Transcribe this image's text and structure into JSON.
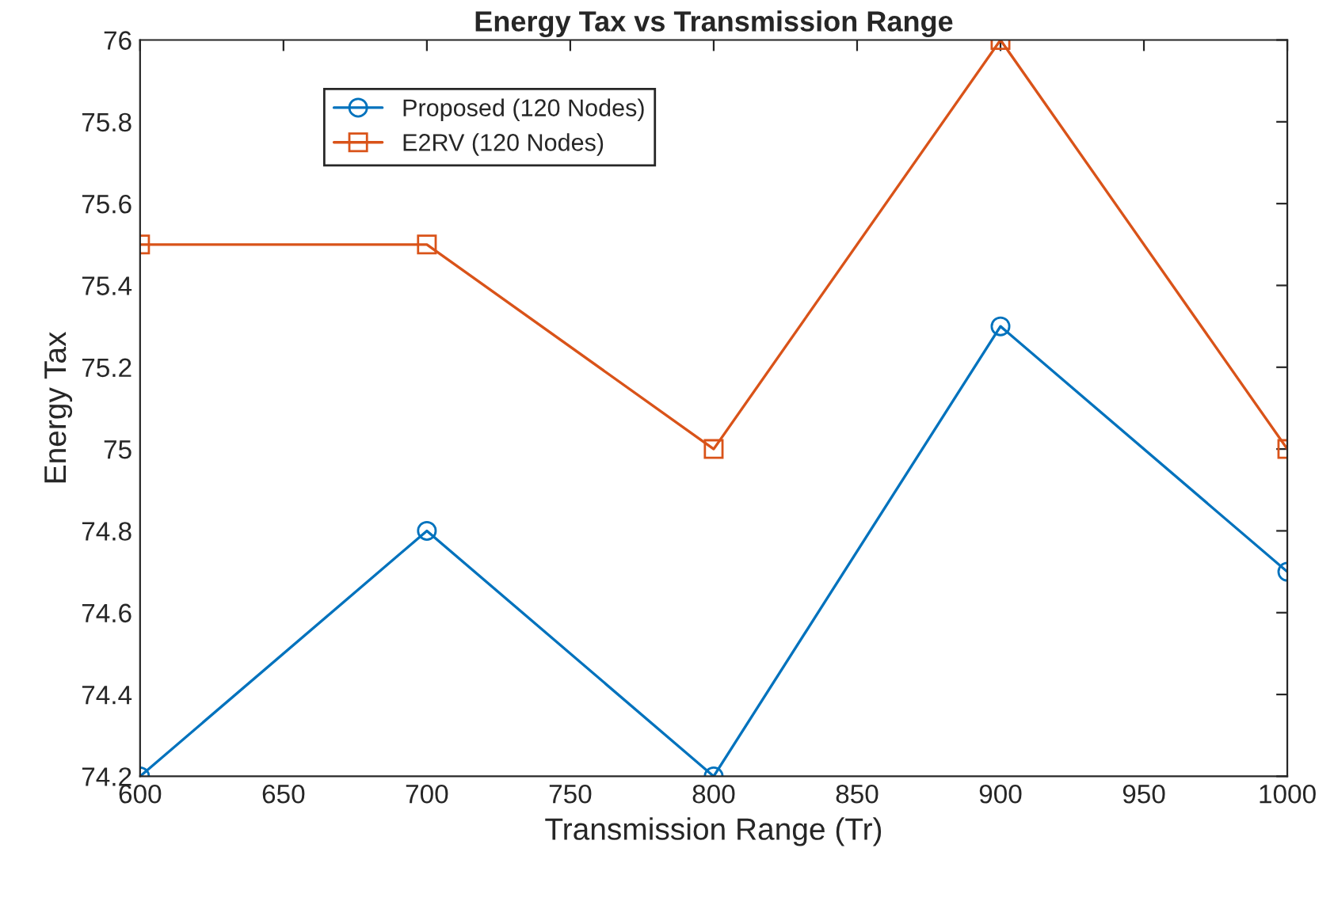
{
  "chart_data": {
    "type": "line",
    "title": "Energy Tax vs Transmission Range",
    "xlabel": "Transmission Range (Tr)",
    "ylabel": "Energy Tax",
    "x": [
      600,
      700,
      800,
      900,
      1000
    ],
    "series": [
      {
        "name": "Proposed (120 Nodes)",
        "color": "#0072bd",
        "marker": "circle",
        "values": [
          74.2,
          74.8,
          74.2,
          75.3,
          74.7
        ]
      },
      {
        "name": "E2RV (120 Nodes)",
        "color": "#d95319",
        "marker": "square",
        "values": [
          75.5,
          75.5,
          75.0,
          76.0,
          75.0
        ]
      }
    ],
    "xlim": [
      600,
      1000
    ],
    "xticks": [
      600,
      650,
      700,
      750,
      800,
      850,
      900,
      950,
      1000
    ],
    "ylim": [
      74.2,
      76
    ],
    "yticks": [
      74.2,
      74.4,
      74.6,
      74.8,
      75,
      75.2,
      75.4,
      75.6,
      75.8,
      76
    ],
    "grid": false,
    "legend": "top left",
    "line_style": "solid"
  }
}
